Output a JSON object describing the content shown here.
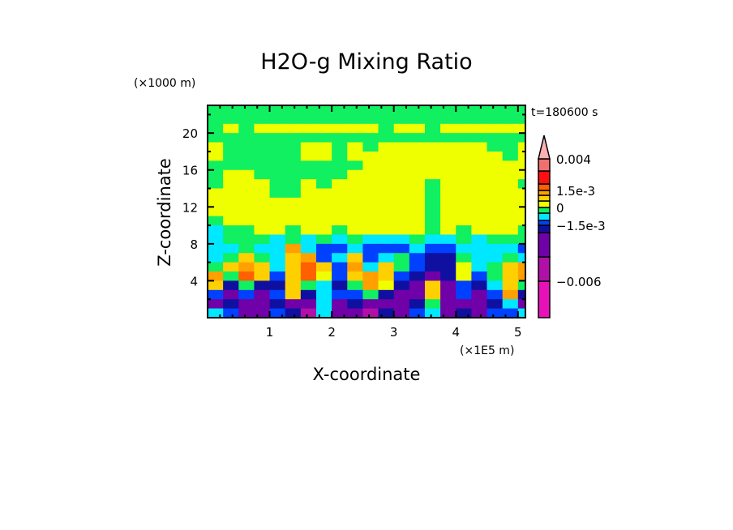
{
  "chart_data": {
    "type": "heatmap",
    "title": "H2O-g Mixing Ratio",
    "xlabel": "X-coordinate",
    "ylabel": "Z-coordinate",
    "x_unit": "(×1E5 m)",
    "y_unit": "(×1000 m)",
    "time_label": "t=180600 s",
    "xlim": [
      0,
      5.12
    ],
    "ylim": [
      0,
      23
    ],
    "x_ticks": [
      1,
      2,
      3,
      4,
      5
    ],
    "y_ticks": [
      4,
      8,
      12,
      16,
      20
    ],
    "x_minor_step": 0.2,
    "y_minor_step": 2,
    "grid": false,
    "colorbar": {
      "levels": [
        -0.006,
        -0.004,
        -0.002,
        -0.0015,
        -0.001,
        -0.0005,
        0,
        0.0005,
        0.001,
        0.0015,
        0.002,
        0.003,
        0.004
      ],
      "colors": [
        "#e810b8",
        "#b010a8",
        "#7000a8",
        "#1010a0",
        "#0040ff",
        "#00e8ff",
        "#10f060",
        "#f0ff00",
        "#ffd000",
        "#ffa000",
        "#ff6000",
        "#ff1010",
        "#f07070"
      ],
      "over_color": "#ffb0b0",
      "tick_labels": [
        {
          "value": 0.004,
          "label": "0.004"
        },
        {
          "value": 0.0015,
          "label": "1.5e-3"
        },
        {
          "value": 0,
          "label": "0"
        },
        {
          "value": -0.0015,
          "label": "−1.5e-3"
        },
        {
          "value": -0.006,
          "label": "−0.006"
        }
      ]
    },
    "x_cell_width": 0.25,
    "z_cell_height": 1,
    "field_level_index_rows_top_to_bottom": [
      [
        6,
        6,
        6,
        6,
        6,
        6,
        6,
        6,
        6,
        6,
        6,
        6,
        6,
        6,
        6,
        6,
        6,
        6,
        6,
        6,
        6
      ],
      [
        6,
        6,
        6,
        6,
        6,
        6,
        6,
        6,
        6,
        6,
        6,
        6,
        6,
        6,
        6,
        6,
        6,
        6,
        6,
        6,
        6
      ],
      [
        6,
        7,
        6,
        7,
        7,
        7,
        7,
        7,
        7,
        7,
        7,
        6,
        7,
        7,
        6,
        7,
        7,
        7,
        7,
        7,
        7
      ],
      [
        6,
        6,
        6,
        6,
        6,
        6,
        6,
        6,
        6,
        6,
        6,
        6,
        6,
        6,
        6,
        6,
        6,
        6,
        6,
        6,
        6
      ],
      [
        7,
        6,
        6,
        6,
        6,
        6,
        7,
        7,
        6,
        7,
        6,
        7,
        7,
        7,
        7,
        7,
        7,
        7,
        6,
        6,
        7
      ],
      [
        7,
        6,
        6,
        6,
        6,
        6,
        7,
        7,
        6,
        7,
        7,
        7,
        7,
        7,
        7,
        7,
        7,
        7,
        7,
        6,
        7
      ],
      [
        6,
        6,
        6,
        6,
        6,
        6,
        6,
        6,
        6,
        6,
        7,
        7,
        7,
        7,
        7,
        7,
        7,
        7,
        7,
        7,
        7
      ],
      [
        6,
        7,
        7,
        6,
        6,
        6,
        6,
        6,
        6,
        7,
        7,
        7,
        7,
        7,
        7,
        7,
        7,
        7,
        7,
        7,
        7
      ],
      [
        6,
        7,
        7,
        7,
        6,
        6,
        7,
        6,
        7,
        7,
        7,
        7,
        7,
        7,
        6,
        7,
        7,
        7,
        7,
        7,
        6
      ],
      [
        7,
        7,
        7,
        7,
        6,
        6,
        7,
        7,
        7,
        7,
        7,
        7,
        7,
        7,
        6,
        7,
        7,
        7,
        7,
        7,
        7
      ],
      [
        7,
        7,
        7,
        7,
        7,
        7,
        7,
        7,
        7,
        7,
        7,
        7,
        7,
        7,
        6,
        7,
        7,
        7,
        7,
        7,
        7
      ],
      [
        7,
        7,
        7,
        7,
        7,
        7,
        7,
        7,
        7,
        7,
        7,
        7,
        7,
        7,
        6,
        7,
        7,
        7,
        7,
        7,
        7
      ],
      [
        6,
        7,
        7,
        7,
        7,
        7,
        7,
        7,
        7,
        7,
        7,
        7,
        7,
        7,
        6,
        7,
        7,
        7,
        7,
        7,
        7
      ],
      [
        5,
        6,
        6,
        7,
        7,
        6,
        7,
        7,
        6,
        7,
        7,
        7,
        7,
        7,
        6,
        7,
        6,
        7,
        7,
        7,
        6
      ],
      [
        5,
        6,
        6,
        6,
        5,
        6,
        5,
        6,
        5,
        6,
        5,
        5,
        5,
        6,
        5,
        5,
        6,
        5,
        6,
        6,
        6
      ],
      [
        5,
        5,
        6,
        5,
        5,
        9,
        5,
        4,
        4,
        5,
        4,
        4,
        4,
        5,
        4,
        4,
        5,
        5,
        5,
        5,
        4
      ],
      [
        5,
        6,
        8,
        6,
        5,
        8,
        9,
        4,
        5,
        8,
        4,
        5,
        6,
        4,
        3,
        3,
        6,
        5,
        5,
        6,
        5
      ],
      [
        6,
        8,
        9,
        8,
        5,
        8,
        10,
        8,
        4,
        9,
        5,
        8,
        6,
        4,
        3,
        3,
        7,
        5,
        6,
        8,
        9
      ],
      [
        9,
        6,
        10,
        8,
        4,
        8,
        10,
        7,
        4,
        8,
        9,
        8,
        4,
        3,
        2,
        3,
        7,
        4,
        6,
        8,
        9
      ],
      [
        8,
        3,
        6,
        3,
        3,
        8,
        6,
        5,
        3,
        6,
        9,
        7,
        3,
        2,
        8,
        2,
        4,
        3,
        5,
        8,
        6
      ],
      [
        4,
        2,
        4,
        2,
        4,
        8,
        3,
        5,
        4,
        4,
        6,
        3,
        2,
        2,
        8,
        2,
        4,
        2,
        4,
        9,
        3
      ],
      [
        2,
        3,
        2,
        2,
        3,
        2,
        2,
        5,
        2,
        3,
        2,
        2,
        2,
        3,
        6,
        2,
        2,
        2,
        3,
        5,
        2
      ],
      [
        5,
        4,
        2,
        2,
        4,
        3,
        1,
        5,
        2,
        2,
        1,
        3,
        2,
        4,
        5,
        2,
        3,
        2,
        4,
        4,
        5
      ]
    ]
  }
}
